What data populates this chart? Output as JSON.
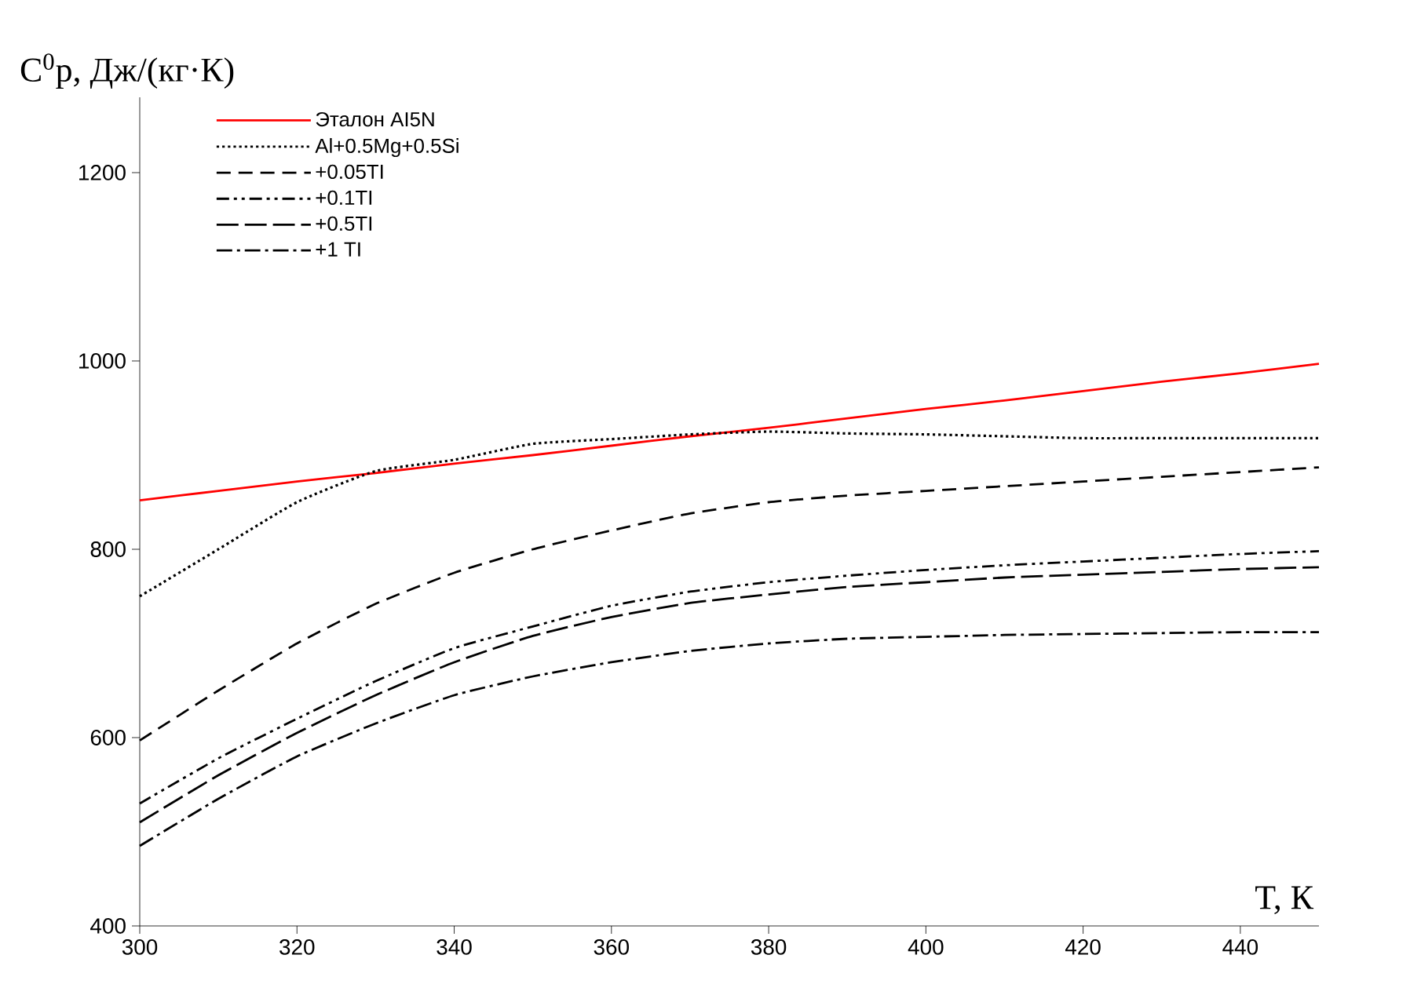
{
  "chart_data": {
    "type": "line",
    "xlabel": "T, К",
    "ylabel": "C$^{0}$p, Дж/(кг·К)",
    "x": [
      300,
      310,
      320,
      330,
      340,
      350,
      360,
      370,
      380,
      390,
      400,
      410,
      420,
      430,
      440,
      450
    ],
    "series": [
      {
        "name": "Эталон AI5N",
        "color": "#ff0000",
        "line_style": "solid",
        "values": [
          852,
          862,
          872,
          881,
          891,
          900,
          910,
          920,
          929,
          939,
          949,
          958,
          968,
          978,
          987,
          997
        ]
      },
      {
        "name": "Al+0.5Mg+0.5Si",
        "color": "#000000",
        "line_style": "dotted",
        "values": [
          750,
          800,
          850,
          883,
          895,
          912,
          917,
          922,
          925,
          923,
          922,
          920,
          918,
          918,
          918,
          918
        ]
      },
      {
        "name": "+0.05TI",
        "color": "#000000",
        "line_style": "dashed",
        "values": [
          597,
          650,
          700,
          742,
          775,
          800,
          820,
          838,
          850,
          857,
          862,
          867,
          872,
          877,
          882,
          887
        ]
      },
      {
        "name": "+0.1TI",
        "color": "#000000",
        "line_style": "dashdotdotted",
        "values": [
          530,
          578,
          620,
          660,
          695,
          718,
          740,
          755,
          765,
          772,
          778,
          783,
          787,
          791,
          795,
          798
        ]
      },
      {
        "name": "+0.5TI",
        "color": "#000000",
        "line_style": "longdashed",
        "values": [
          510,
          560,
          605,
          645,
          680,
          708,
          728,
          743,
          752,
          760,
          765,
          770,
          773,
          776,
          779,
          781
        ]
      },
      {
        "name": "+1 TI",
        "color": "#000000",
        "line_style": "dashdotted",
        "values": [
          485,
          535,
          580,
          615,
          645,
          665,
          680,
          692,
          700,
          705,
          707,
          709,
          710,
          711,
          712,
          712
        ]
      }
    ],
    "xlim": [
      300,
      450
    ],
    "ylim": [
      400,
      1280
    ],
    "xticks": [
      300,
      320,
      340,
      360,
      380,
      400,
      420,
      440
    ],
    "yticks": [
      400,
      600,
      800,
      1000,
      1200
    ],
    "grid": false,
    "legend": "top left",
    "marker": "none"
  }
}
